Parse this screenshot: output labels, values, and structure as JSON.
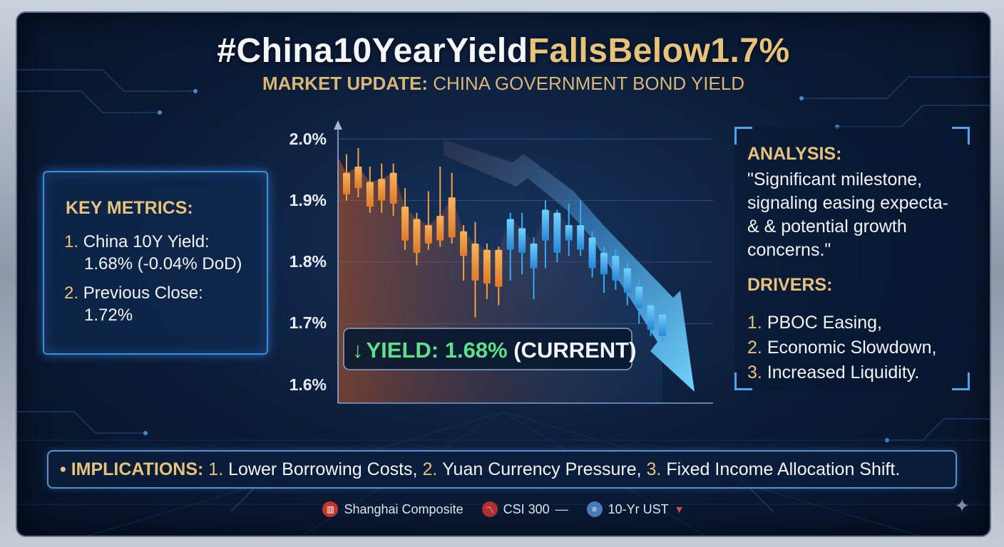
{
  "header": {
    "title_part1": "#China10YearYield",
    "title_part2": "FallsBelow1.7%",
    "subtitle_bold": "MARKET UPDATE:",
    "subtitle_rest": " CHINA GOVERNMENT BOND YIELD"
  },
  "key_metrics": {
    "heading": "KEY METRICS:",
    "items": [
      {
        "num": "1.",
        "label": "China 10Y Yield:",
        "value": "1.68% (-0.04% DoD)"
      },
      {
        "num": "2.",
        "label": "Previous Close:",
        "value": "1.72%"
      }
    ]
  },
  "analysis": {
    "heading": "ANALYSIS:",
    "quote_lines": [
      "\"Significant milestone,",
      "signaling easing expecta-",
      "& & potential growth",
      "concerns.\""
    ],
    "drivers_heading": "DRIVERS:",
    "drivers": [
      {
        "num": "1.",
        "text": "PBOC Easing,"
      },
      {
        "num": "2.",
        "text": "Economic Slowdown,"
      },
      {
        "num": "3.",
        "text": "Increased Liquidity."
      }
    ]
  },
  "implications": {
    "heading": "IMPLICATIONS:",
    "items": [
      {
        "num": "1.",
        "text": "Lower Borrowing Costs,"
      },
      {
        "num": "2.",
        "text": "Yuan Currency Pressure,"
      },
      {
        "num": "3.",
        "text": "Fixed Income Allocation Shift."
      }
    ]
  },
  "ticker": [
    {
      "label": "Shanghai Composite",
      "icon": "bar-chart-icon",
      "color": "#c0392b",
      "trend": ""
    },
    {
      "label": "CSI 300",
      "icon": "chart-icon",
      "color": "#b03030",
      "trend": "flat"
    },
    {
      "label": "10-Yr UST",
      "icon": "bond-icon",
      "color": "#4a78b8",
      "trend": "down"
    }
  ],
  "colors": {
    "gold": "#e6c27a",
    "up_orange": "#f0a040",
    "down_blue": "#3aa8f0",
    "green": "#5ee08a"
  },
  "chart_data": {
    "type": "candlestick",
    "y_ticks": [
      "2.0%",
      "1.9%",
      "1.8%",
      "1.7%",
      "1.6%"
    ],
    "ylim": [
      1.6,
      2.0
    ],
    "grid": true,
    "annotation": {
      "arrow": "↓",
      "label": "YIELD: 1.68%",
      "suffix": " (CURRENT)"
    },
    "trend": "down",
    "candles": [
      {
        "o": 1.945,
        "c": 1.91,
        "h": 1.975,
        "l": 1.9,
        "color": "orange"
      },
      {
        "o": 1.955,
        "c": 1.92,
        "h": 1.985,
        "l": 1.905,
        "color": "orange"
      },
      {
        "o": 1.93,
        "c": 1.89,
        "h": 1.955,
        "l": 1.88,
        "color": "orange"
      },
      {
        "o": 1.935,
        "c": 1.9,
        "h": 1.96,
        "l": 1.88,
        "color": "orange"
      },
      {
        "o": 1.945,
        "c": 1.895,
        "h": 1.96,
        "l": 1.875,
        "color": "orange"
      },
      {
        "o": 1.89,
        "c": 1.835,
        "h": 1.92,
        "l": 1.82,
        "color": "orange"
      },
      {
        "o": 1.87,
        "c": 1.815,
        "h": 1.88,
        "l": 1.795,
        "color": "orange"
      },
      {
        "o": 1.86,
        "c": 1.83,
        "h": 1.915,
        "l": 1.82,
        "color": "orange"
      },
      {
        "o": 1.875,
        "c": 1.835,
        "h": 1.955,
        "l": 1.825,
        "color": "orange"
      },
      {
        "o": 1.905,
        "c": 1.84,
        "h": 1.945,
        "l": 1.83,
        "color": "orange"
      },
      {
        "o": 1.85,
        "c": 1.81,
        "h": 1.86,
        "l": 1.77,
        "color": "orange"
      },
      {
        "o": 1.83,
        "c": 1.77,
        "h": 1.865,
        "l": 1.71,
        "color": "orange"
      },
      {
        "o": 1.82,
        "c": 1.765,
        "h": 1.83,
        "l": 1.74,
        "color": "orange"
      },
      {
        "o": 1.82,
        "c": 1.76,
        "h": 1.825,
        "l": 1.73,
        "color": "orange"
      },
      {
        "o": 1.82,
        "c": 1.87,
        "h": 1.88,
        "l": 1.77,
        "color": "blue"
      },
      {
        "o": 1.815,
        "c": 1.855,
        "h": 1.88,
        "l": 1.78,
        "color": "blue"
      },
      {
        "o": 1.79,
        "c": 1.83,
        "h": 1.84,
        "l": 1.74,
        "color": "blue"
      },
      {
        "o": 1.835,
        "c": 1.885,
        "h": 1.9,
        "l": 1.79,
        "color": "blue"
      },
      {
        "o": 1.88,
        "c": 1.815,
        "h": 1.885,
        "l": 1.8,
        "color": "blue"
      },
      {
        "o": 1.86,
        "c": 1.835,
        "h": 1.895,
        "l": 1.81,
        "color": "blue"
      },
      {
        "o": 1.86,
        "c": 1.82,
        "h": 1.9,
        "l": 1.81,
        "color": "blue"
      },
      {
        "o": 1.84,
        "c": 1.79,
        "h": 1.85,
        "l": 1.775,
        "color": "blue"
      },
      {
        "o": 1.815,
        "c": 1.78,
        "h": 1.825,
        "l": 1.75,
        "color": "blue"
      },
      {
        "o": 1.81,
        "c": 1.77,
        "h": 1.82,
        "l": 1.755,
        "color": "blue"
      },
      {
        "o": 1.79,
        "c": 1.75,
        "h": 1.8,
        "l": 1.73,
        "color": "blue"
      },
      {
        "o": 1.76,
        "c": 1.725,
        "h": 1.77,
        "l": 1.7,
        "color": "blue"
      },
      {
        "o": 1.73,
        "c": 1.69,
        "h": 1.74,
        "l": 1.68,
        "color": "blue"
      },
      {
        "o": 1.715,
        "c": 1.68,
        "h": 1.72,
        "l": 1.67,
        "color": "blue"
      }
    ]
  }
}
